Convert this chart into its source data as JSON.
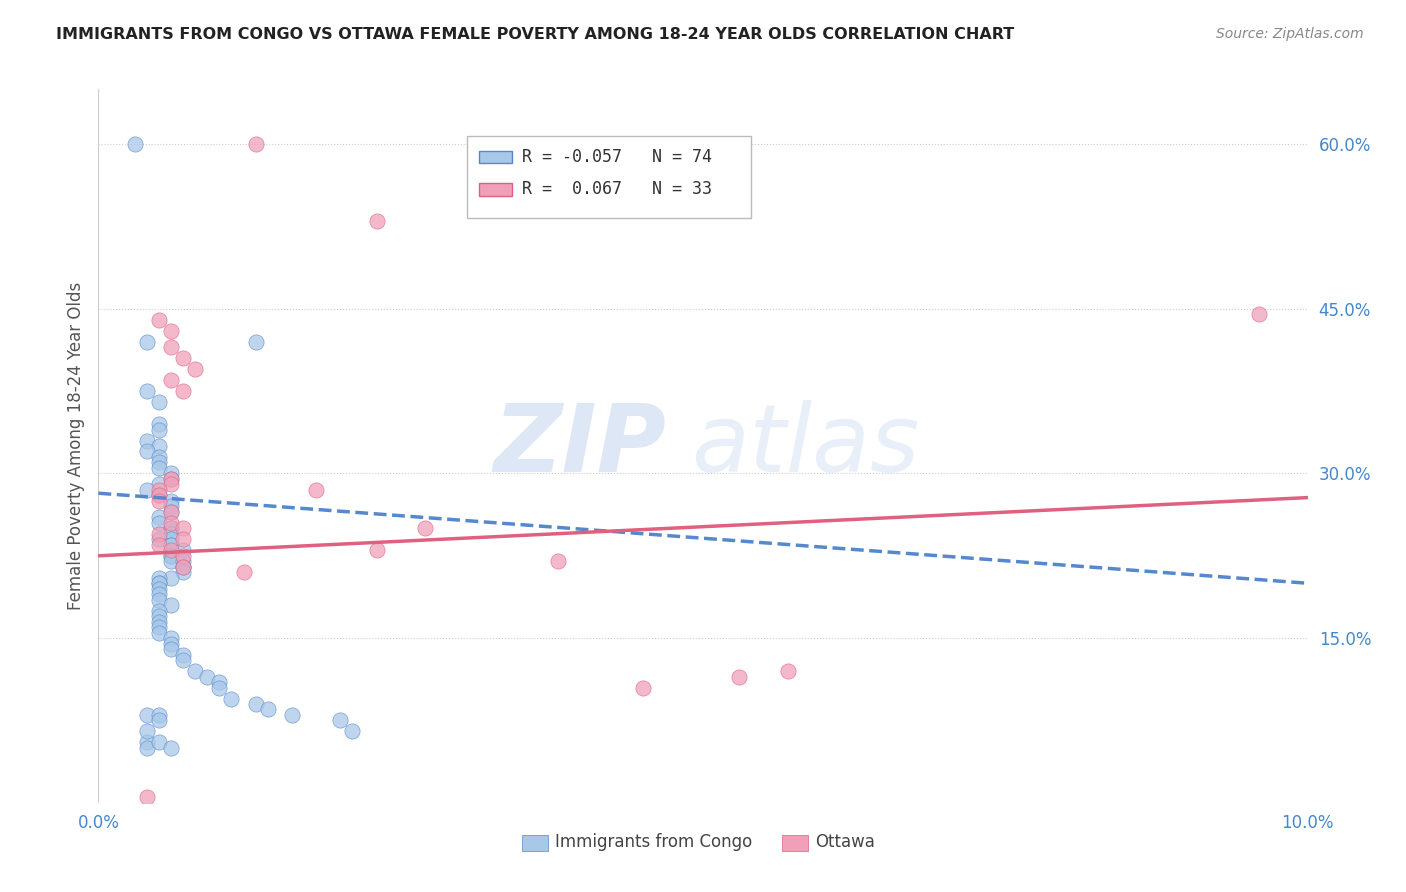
{
  "title": "IMMIGRANTS FROM CONGO VS OTTAWA FEMALE POVERTY AMONG 18-24 YEAR OLDS CORRELATION CHART",
  "source": "Source: ZipAtlas.com",
  "ylabel_label": "Female Poverty Among 18-24 Year Olds",
  "right_yticks": [
    0.6,
    0.45,
    0.3,
    0.15
  ],
  "right_ytick_labels": [
    "60.0%",
    "45.0%",
    "30.0%",
    "15.0%"
  ],
  "xlim": [
    0.0,
    0.1
  ],
  "ylim": [
    0.0,
    0.65
  ],
  "legend_label1": "Immigrants from Congo",
  "legend_label2": "Ottawa",
  "R1": "-0.057",
  "N1": "74",
  "R2": "0.067",
  "N2": "33",
  "color_blue": "#A8C8E8",
  "color_pink": "#F0A0B8",
  "line_blue": "#5588CC",
  "line_pink": "#E06080",
  "watermark_zip": "ZIP",
  "watermark_atlas": "atlas",
  "blue_scatter_x": [
    0.003,
    0.013,
    0.004,
    0.004,
    0.005,
    0.005,
    0.005,
    0.004,
    0.005,
    0.004,
    0.005,
    0.005,
    0.005,
    0.006,
    0.006,
    0.005,
    0.004,
    0.005,
    0.006,
    0.006,
    0.006,
    0.005,
    0.005,
    0.006,
    0.006,
    0.006,
    0.006,
    0.005,
    0.006,
    0.006,
    0.007,
    0.006,
    0.006,
    0.006,
    0.007,
    0.007,
    0.007,
    0.007,
    0.006,
    0.005,
    0.005,
    0.005,
    0.005,
    0.005,
    0.005,
    0.006,
    0.005,
    0.005,
    0.005,
    0.005,
    0.005,
    0.006,
    0.006,
    0.006,
    0.007,
    0.007,
    0.008,
    0.009,
    0.01,
    0.01,
    0.011,
    0.013,
    0.014,
    0.016,
    0.02,
    0.021,
    0.004,
    0.004,
    0.004,
    0.005,
    0.005,
    0.004,
    0.005,
    0.006
  ],
  "blue_scatter_y": [
    0.6,
    0.42,
    0.42,
    0.375,
    0.365,
    0.345,
    0.34,
    0.33,
    0.325,
    0.32,
    0.315,
    0.31,
    0.305,
    0.3,
    0.295,
    0.29,
    0.285,
    0.28,
    0.275,
    0.27,
    0.265,
    0.26,
    0.255,
    0.25,
    0.25,
    0.245,
    0.24,
    0.24,
    0.235,
    0.235,
    0.23,
    0.225,
    0.225,
    0.22,
    0.22,
    0.215,
    0.215,
    0.21,
    0.205,
    0.205,
    0.2,
    0.2,
    0.195,
    0.19,
    0.185,
    0.18,
    0.175,
    0.17,
    0.165,
    0.16,
    0.155,
    0.15,
    0.145,
    0.14,
    0.135,
    0.13,
    0.12,
    0.115,
    0.11,
    0.105,
    0.095,
    0.09,
    0.085,
    0.08,
    0.075,
    0.065,
    0.055,
    0.05,
    0.08,
    0.08,
    0.075,
    0.065,
    0.055,
    0.05
  ],
  "pink_scatter_x": [
    0.013,
    0.023,
    0.005,
    0.006,
    0.006,
    0.007,
    0.008,
    0.006,
    0.007,
    0.006,
    0.006,
    0.005,
    0.005,
    0.005,
    0.006,
    0.006,
    0.007,
    0.005,
    0.007,
    0.005,
    0.006,
    0.007,
    0.018,
    0.027,
    0.023,
    0.038,
    0.007,
    0.012,
    0.057,
    0.053,
    0.045,
    0.096,
    0.004
  ],
  "pink_scatter_y": [
    0.6,
    0.53,
    0.44,
    0.43,
    0.415,
    0.405,
    0.395,
    0.385,
    0.375,
    0.295,
    0.29,
    0.285,
    0.28,
    0.275,
    0.265,
    0.255,
    0.25,
    0.245,
    0.24,
    0.235,
    0.23,
    0.225,
    0.285,
    0.25,
    0.23,
    0.22,
    0.215,
    0.21,
    0.12,
    0.115,
    0.105,
    0.445,
    0.005
  ],
  "blue_line_x0": 0.0,
  "blue_line_y0": 0.282,
  "blue_line_x1": 0.1,
  "blue_line_y1": 0.2,
  "pink_line_x0": 0.0,
  "pink_line_y0": 0.225,
  "pink_line_x1": 0.1,
  "pink_line_y1": 0.278
}
